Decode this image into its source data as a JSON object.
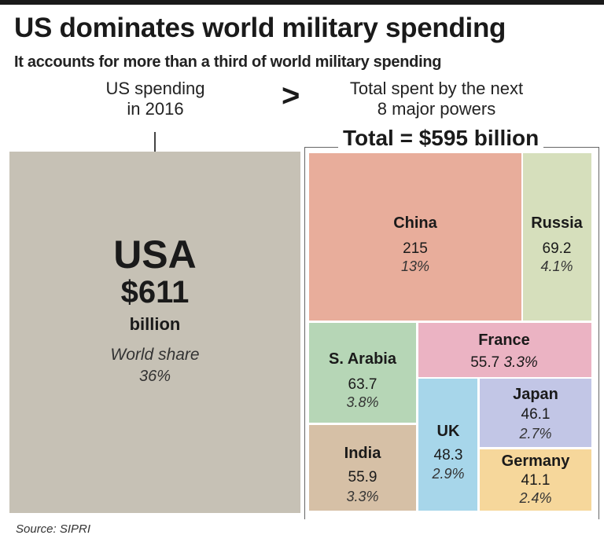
{
  "header": {
    "title": "US dominates world military spending",
    "subtitle": "It accounts for more than a third of world military spending"
  },
  "comparison": {
    "us_heading_line1": "US spending",
    "us_heading_line2": "in 2016",
    "operator": ">",
    "others_heading_line1": "Total spent by the next",
    "others_heading_line2": "8 major powers",
    "others_total": "Total = $595 billion"
  },
  "usa": {
    "name": "USA",
    "amount": "$611",
    "unit": "billion",
    "share_label": "World share",
    "share": "36%"
  },
  "chart_data": {
    "type": "treemap",
    "title": "US dominates world military spending",
    "unit": "billion USD (2016)",
    "total": 595,
    "series": [
      {
        "name": "China",
        "value": 215,
        "value_label": "215",
        "share": "13%",
        "color": "#e8ad9b"
      },
      {
        "name": "Russia",
        "value": 69.2,
        "value_label": "69.2",
        "share": "4.1%",
        "color": "#d6dfbc"
      },
      {
        "name": "France",
        "value": 55.7,
        "value_label": "55.7",
        "share": "3.3%",
        "color": "#ebb3c3"
      },
      {
        "name": "S. Arabia",
        "value": 63.7,
        "value_label": "63.7",
        "share": "3.8%",
        "color": "#b6d6b6"
      },
      {
        "name": "Japan",
        "value": 46.1,
        "value_label": "46.1",
        "share": "2.7%",
        "color": "#c2c6e6"
      },
      {
        "name": "UK",
        "value": 48.3,
        "value_label": "48.3",
        "share": "2.9%",
        "color": "#a7d6ea"
      },
      {
        "name": "India",
        "value": 55.9,
        "value_label": "55.9",
        "share": "3.3%",
        "color": "#d6c0a6"
      },
      {
        "name": "Germany",
        "value": 41.1,
        "value_label": "41.1",
        "share": "2.4%",
        "color": "#f6d79b"
      }
    ]
  },
  "footer": {
    "source": "Source: SIPRI"
  }
}
